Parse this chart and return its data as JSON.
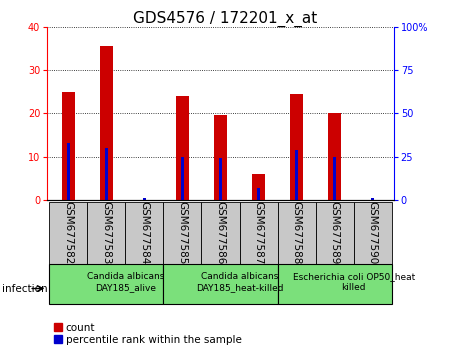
{
  "title": "GDS4576 / 172201_x_at",
  "samples": [
    "GSM677582",
    "GSM677583",
    "GSM677584",
    "GSM677585",
    "GSM677586",
    "GSM677587",
    "GSM677588",
    "GSM677589",
    "GSM677590"
  ],
  "counts": [
    25,
    35.5,
    0,
    24,
    19.5,
    6,
    24.5,
    20,
    0
  ],
  "percentile_ranks": [
    33,
    30,
    1,
    25,
    24,
    7,
    29,
    25,
    1
  ],
  "ylim_left": [
    0,
    40
  ],
  "ylim_right": [
    0,
    100
  ],
  "yticks_left": [
    0,
    10,
    20,
    30,
    40
  ],
  "yticks_right": [
    0,
    25,
    50,
    75,
    100
  ],
  "yticklabels_right": [
    "0",
    "25",
    "50",
    "75",
    "100%"
  ],
  "bar_color": "#cc0000",
  "percentile_color": "#0000cc",
  "bar_width": 0.35,
  "perc_bar_width": 0.08,
  "groups": [
    {
      "label": "Candida albicans\nDAY185_alive",
      "start": 0,
      "end": 3,
      "color": "#7be07b"
    },
    {
      "label": "Candida albicans\nDAY185_heat-killed",
      "start": 3,
      "end": 6,
      "color": "#7be07b"
    },
    {
      "label": "Escherichia coli OP50_heat\nkilled",
      "start": 6,
      "end": 9,
      "color": "#7be07b"
    }
  ],
  "xlabel_infection": "infection",
  "legend_count": "count",
  "legend_percentile": "percentile rank within the sample",
  "tick_bg_color": "#c8c8c8",
  "title_fontsize": 11,
  "tick_fontsize": 7,
  "label_fontsize": 7.5,
  "group_fontsize": 6.5,
  "sample_label_fontsize": 7.5,
  "bg_color": "#ffffff"
}
